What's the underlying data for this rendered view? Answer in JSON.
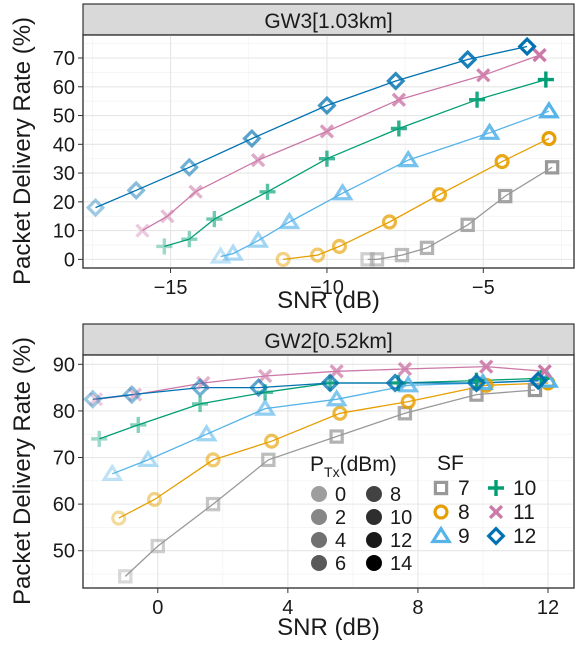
{
  "chart_data": [
    {
      "type": "line",
      "title": "GW3[1.03km]",
      "xlabel": "SNR (dB)",
      "ylabel": "Packet Delivery Rate (%)",
      "xlim": [
        -17.8,
        -2.1
      ],
      "ylim": [
        -3,
        78
      ],
      "xticks": [
        -15,
        -10,
        -5
      ],
      "xtick_labels": [
        "−15",
        "−10",
        "−5"
      ],
      "yticks": [
        0,
        10,
        20,
        30,
        40,
        50,
        60,
        70
      ],
      "ytick_labels": [
        "0",
        "10",
        "20",
        "30",
        "40",
        "50",
        "60",
        "70"
      ],
      "grid": true,
      "series": [
        {
          "sf": 7,
          "x": [
            -8.7,
            -8.4,
            -7.6,
            -6.8,
            -5.5,
            -4.3,
            -2.8
          ],
          "y": [
            0,
            0,
            1.5,
            4,
            12,
            22,
            32
          ]
        },
        {
          "sf": 8,
          "x": [
            -11.4,
            -10.3,
            -9.6,
            -8.0,
            -6.4,
            -4.4,
            -2.9
          ],
          "y": [
            0,
            1.5,
            4.5,
            13,
            22.5,
            34,
            42
          ]
        },
        {
          "sf": 9,
          "x": [
            -13.4,
            -13.0,
            -12.2,
            -11.2,
            -9.5,
            -7.4,
            -4.8,
            -2.9
          ],
          "y": [
            1,
            2,
            6.5,
            13,
            23,
            34.5,
            44,
            51.5
          ]
        },
        {
          "sf": 10,
          "x": [
            -15.2,
            -14.4,
            -13.6,
            -11.9,
            -10.0,
            -7.7,
            -5.2,
            -3.0
          ],
          "y": [
            4.5,
            7,
            14,
            23.5,
            35,
            45.5,
            55.5,
            62.5
          ]
        },
        {
          "sf": 11,
          "x": [
            -15.9,
            -15.1,
            -14.2,
            -12.2,
            -10.0,
            -7.7,
            -5.0,
            -3.2
          ],
          "y": [
            10,
            15,
            23.5,
            34.5,
            44.5,
            55.5,
            64,
            71
          ]
        },
        {
          "sf": 12,
          "x": [
            -17.4,
            -16.1,
            -14.4,
            -12.4,
            -10.0,
            -7.8,
            -5.5,
            -3.6
          ],
          "y": [
            18,
            24,
            32,
            42,
            53.5,
            62,
            69.5,
            74
          ]
        }
      ]
    },
    {
      "type": "line",
      "title": "GW2[0.52km]",
      "xlabel": "SNR (dB)",
      "ylabel": "Packet Delivery Rate (%)",
      "xlim": [
        -2.3,
        12.8
      ],
      "ylim": [
        42,
        92
      ],
      "xticks": [
        0,
        4,
        8,
        12
      ],
      "xtick_labels": [
        "0",
        "4",
        "8",
        "12"
      ],
      "yticks": [
        50,
        60,
        70,
        80,
        90
      ],
      "ytick_labels": [
        "50",
        "60",
        "70",
        "80",
        "90"
      ],
      "grid": true,
      "series": [
        {
          "sf": 7,
          "x": [
            -1.0,
            0.0,
            1.7,
            3.4,
            5.5,
            7.6,
            9.8,
            11.6
          ],
          "y": [
            44.5,
            51,
            60,
            69.5,
            74.5,
            79.5,
            83.5,
            84.5
          ]
        },
        {
          "sf": 8,
          "x": [
            -1.2,
            -0.1,
            1.7,
            3.5,
            5.6,
            7.7,
            10.1,
            12.0
          ],
          "y": [
            57,
            61,
            69.5,
            73.5,
            79.5,
            82,
            85.5,
            86
          ]
        },
        {
          "sf": 9,
          "x": [
            -1.4,
            -0.3,
            1.5,
            3.3,
            5.5,
            7.7,
            10.0,
            12.0
          ],
          "y": [
            66.5,
            69.5,
            75,
            80.5,
            82.5,
            85.5,
            86,
            86.5
          ]
        },
        {
          "sf": 10,
          "x": [
            -1.8,
            -0.6,
            1.3,
            3.3,
            5.3,
            7.4,
            9.8,
            11.8
          ],
          "y": [
            74,
            77,
            81.5,
            84,
            86,
            86,
            86.5,
            87
          ]
        },
        {
          "sf": 11,
          "x": [
            -1.9,
            -0.7,
            1.4,
            3.3,
            5.5,
            7.6,
            10.1,
            11.9
          ],
          "y": [
            82.5,
            83.5,
            86,
            87.5,
            88.5,
            89,
            89.5,
            88.5
          ]
        },
        {
          "sf": 12,
          "x": [
            -2.0,
            -0.8,
            1.3,
            3.1,
            5.3,
            7.3,
            9.8,
            11.7
          ],
          "y": [
            82.5,
            83.5,
            85,
            85,
            86,
            86,
            86,
            86.5
          ]
        }
      ]
    }
  ],
  "sf_legend": {
    "title": "SF",
    "items": [
      {
        "sf": 7,
        "label": "7",
        "color": "#999999",
        "shape": "square-open-icon"
      },
      {
        "sf": 8,
        "label": "8",
        "color": "#e69f00",
        "shape": "circle-open-icon"
      },
      {
        "sf": 9,
        "label": "9",
        "color": "#56b4e9",
        "shape": "triangle-open-icon"
      },
      {
        "sf": 10,
        "label": "10",
        "color": "#009e73",
        "shape": "plus-icon"
      },
      {
        "sf": 11,
        "label": "11",
        "color": "#cc79a7",
        "shape": "cross-icon"
      },
      {
        "sf": 12,
        "label": "12",
        "color": "#0072b2",
        "shape": "diamond-open-icon"
      }
    ]
  },
  "ptx_legend": {
    "title_main": "P",
    "title_sub": "Tx",
    "title_rest": "(dBm)",
    "items": [
      {
        "label": "0",
        "alpha": 0.38
      },
      {
        "label": "2",
        "alpha": 0.47
      },
      {
        "label": "4",
        "alpha": 0.56
      },
      {
        "label": "6",
        "alpha": 0.65
      },
      {
        "label": "8",
        "alpha": 0.74
      },
      {
        "label": "10",
        "alpha": 0.82
      },
      {
        "label": "12",
        "alpha": 0.9
      },
      {
        "label": "14",
        "alpha": 1.0
      }
    ]
  }
}
